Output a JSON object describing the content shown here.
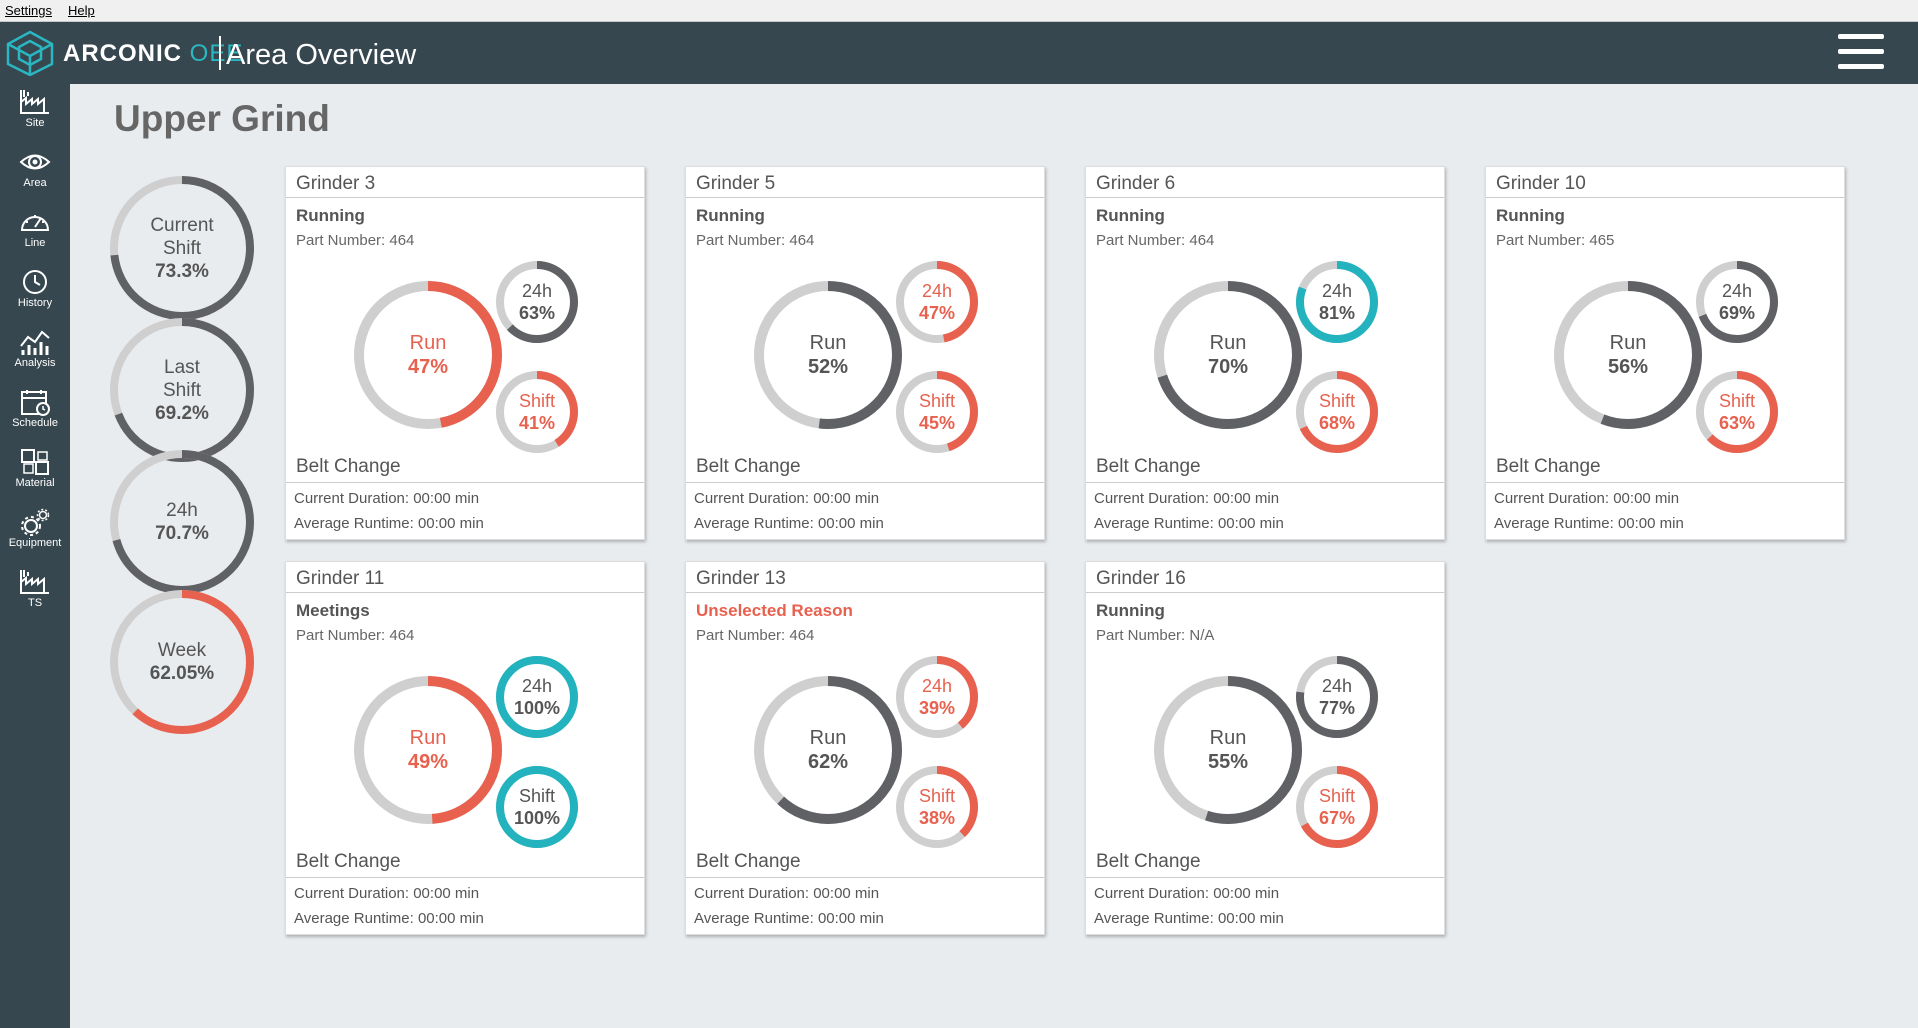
{
  "menu": {
    "settings": "Settings",
    "help": "Help"
  },
  "header": {
    "brand": "ARCONIC",
    "brand_accent": "OEE",
    "title": "Area Overview"
  },
  "sidebar": [
    {
      "label": "Site",
      "icon": "factory-icon"
    },
    {
      "label": "Area",
      "icon": "eye-icon"
    },
    {
      "label": "Line",
      "icon": "gauge-icon"
    },
    {
      "label": "History",
      "icon": "clock-icon"
    },
    {
      "label": "Analysis",
      "icon": "chart-icon"
    },
    {
      "label": "Schedule",
      "icon": "calendar-icon"
    },
    {
      "label": "Material",
      "icon": "material-icon"
    },
    {
      "label": "Equipment",
      "icon": "gears-icon"
    },
    {
      "label": "TS",
      "icon": "factory-icon"
    }
  ],
  "colors": {
    "dark": "#5f6165",
    "track": "#cfcfcf",
    "red": "#e8614f",
    "teal": "#23b3be",
    "text": "#555555"
  },
  "area": {
    "title": "Upper Grind",
    "summary": [
      {
        "lines": [
          "Current",
          "Shift"
        ],
        "value": "73.3%",
        "pct": 73.3,
        "color": "dark"
      },
      {
        "lines": [
          "Last",
          "Shift"
        ],
        "value": "69.2%",
        "pct": 69.2,
        "color": "dark"
      },
      {
        "lines": [
          "24h"
        ],
        "value": "70.7%",
        "pct": 70.7,
        "color": "dark"
      },
      {
        "lines": [
          "Week"
        ],
        "value": "62.05%",
        "pct": 62.05,
        "color": "red"
      }
    ]
  },
  "machines": [
    {
      "name": "Grinder 3",
      "status": "Running",
      "status_warn": false,
      "part_label": "Part Number: 464",
      "run": {
        "label": "Run",
        "value": "47%",
        "pct": 47,
        "color": "red"
      },
      "h24": {
        "label": "24h",
        "value": "63%",
        "pct": 63,
        "color": "dark"
      },
      "shift": {
        "label": "Shift",
        "value": "41%",
        "pct": 41,
        "color": "red"
      },
      "reason": "Belt Change",
      "duration": "Current Duration: 00:00 min",
      "average": "Average Runtime: 00:00 min"
    },
    {
      "name": "Grinder 5",
      "status": "Running",
      "status_warn": false,
      "part_label": "Part Number: 464",
      "run": {
        "label": "Run",
        "value": "52%",
        "pct": 52,
        "color": "dark"
      },
      "h24": {
        "label": "24h",
        "value": "47%",
        "pct": 47,
        "color": "red"
      },
      "shift": {
        "label": "Shift",
        "value": "45%",
        "pct": 45,
        "color": "red"
      },
      "reason": "Belt Change",
      "duration": "Current Duration: 00:00 min",
      "average": "Average Runtime: 00:00 min"
    },
    {
      "name": "Grinder 6",
      "status": "Running",
      "status_warn": false,
      "part_label": "Part Number: 464",
      "run": {
        "label": "Run",
        "value": "70%",
        "pct": 70,
        "color": "dark"
      },
      "h24": {
        "label": "24h",
        "value": "81%",
        "pct": 81,
        "color": "teal"
      },
      "shift": {
        "label": "Shift",
        "value": "68%",
        "pct": 68,
        "color": "red"
      },
      "reason": "Belt Change",
      "duration": "Current Duration: 00:00 min",
      "average": "Average Runtime: 00:00 min"
    },
    {
      "name": "Grinder 10",
      "status": "Running",
      "status_warn": false,
      "part_label": "Part Number: 465",
      "run": {
        "label": "Run",
        "value": "56%",
        "pct": 56,
        "color": "dark"
      },
      "h24": {
        "label": "24h",
        "value": "69%",
        "pct": 69,
        "color": "dark"
      },
      "shift": {
        "label": "Shift",
        "value": "63%",
        "pct": 63,
        "color": "red"
      },
      "reason": "Belt Change",
      "duration": "Current Duration: 00:00 min",
      "average": "Average Runtime: 00:00 min"
    },
    {
      "name": "Grinder 11",
      "status": "Meetings",
      "status_warn": false,
      "part_label": "Part Number: 464",
      "run": {
        "label": "Run",
        "value": "49%",
        "pct": 49,
        "color": "red"
      },
      "h24": {
        "label": "24h",
        "value": "100%",
        "pct": 100,
        "color": "teal"
      },
      "shift": {
        "label": "Shift",
        "value": "100%",
        "pct": 100,
        "color": "teal"
      },
      "reason": "Belt Change",
      "duration": "Current Duration: 00:00 min",
      "average": "Average Runtime: 00:00 min"
    },
    {
      "name": "Grinder 13",
      "status": "Unselected Reason",
      "status_warn": true,
      "part_label": "Part Number: 464",
      "run": {
        "label": "Run",
        "value": "62%",
        "pct": 62,
        "color": "dark"
      },
      "h24": {
        "label": "24h",
        "value": "39%",
        "pct": 39,
        "color": "red"
      },
      "shift": {
        "label": "Shift",
        "value": "38%",
        "pct": 38,
        "color": "red"
      },
      "reason": "Belt Change",
      "duration": "Current Duration: 00:00 min",
      "average": "Average Runtime: 00:00 min"
    },
    {
      "name": "Grinder 16",
      "status": "Running",
      "status_warn": false,
      "part_label": "Part Number: N/A",
      "run": {
        "label": "Run",
        "value": "55%",
        "pct": 55,
        "color": "dark"
      },
      "h24": {
        "label": "24h",
        "value": "77%",
        "pct": 77,
        "color": "dark"
      },
      "shift": {
        "label": "Shift",
        "value": "67%",
        "pct": 67,
        "color": "red"
      },
      "reason": "Belt Change",
      "duration": "Current Duration: 00:00 min",
      "average": "Average Runtime: 00:00 min"
    }
  ]
}
